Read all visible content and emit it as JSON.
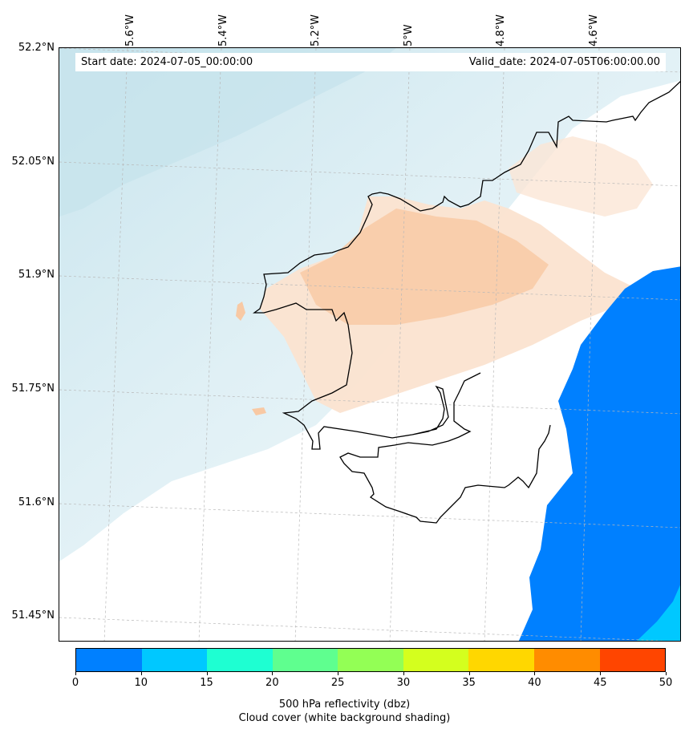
{
  "map": {
    "start_date_text": "Start date: 2024-07-05_00:00:00",
    "valid_date_text": "Valid_date: 2024-07-05T06:00:00.00",
    "longitude_labels": [
      "5.6°W",
      "5.4°W",
      "5.2°W",
      "5°W",
      "4.8°W",
      "4.6°W"
    ],
    "latitude_labels": [
      "52.2°N",
      "52.05°N",
      "51.9°N",
      "51.75°N",
      "51.6°N",
      "51.45°N"
    ],
    "coastline_color": "#000000",
    "cloud_shading_color": "#cde8ef",
    "reflectivity_shading_color": "#f8c9a4"
  },
  "colorbar": {
    "ticks": [
      "0",
      "10",
      "15",
      "20",
      "25",
      "30",
      "35",
      "40",
      "45",
      "50"
    ],
    "colors": [
      "#0080ff",
      "#00c8ff",
      "#1effd2",
      "#5fff8f",
      "#93ff55",
      "#d4ff1e",
      "#ffd700",
      "#ff8c00",
      "#ff4500"
    ],
    "label_line1": "500 hPa reflectivity (dbz)",
    "label_line2": "Cloud cover (white background shading)"
  }
}
